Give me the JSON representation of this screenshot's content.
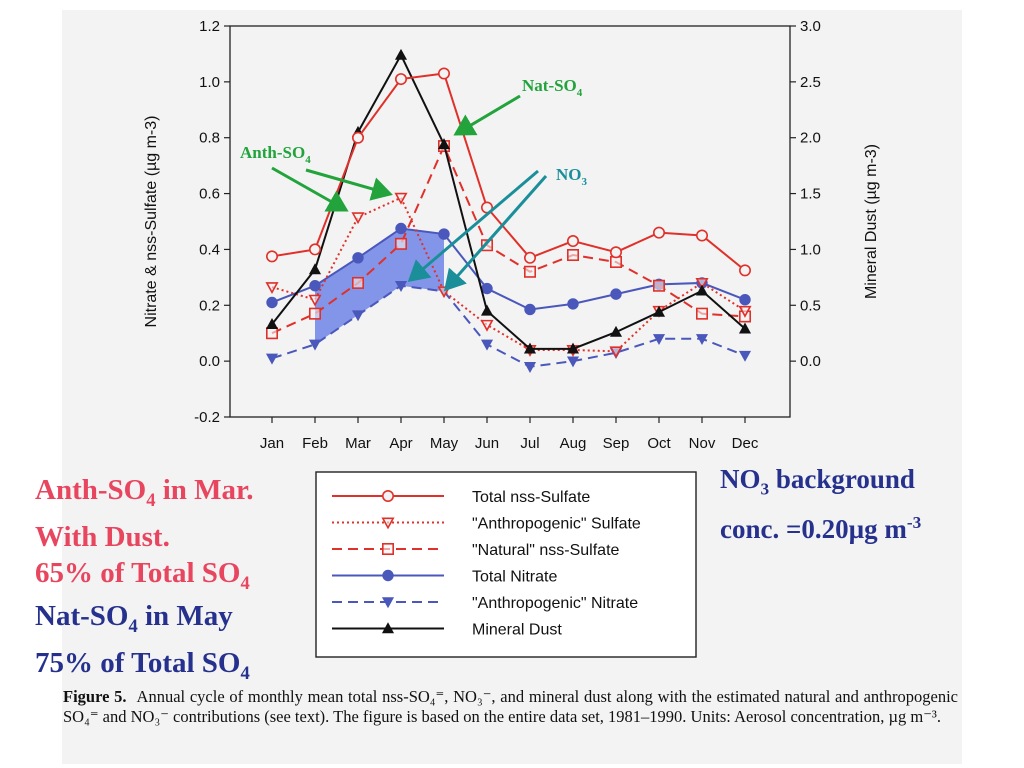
{
  "chart_data": {
    "type": "line",
    "categories": [
      "Jan",
      "Feb",
      "Mar",
      "Apr",
      "May",
      "Jun",
      "Jul",
      "Aug",
      "Sep",
      "Oct",
      "Nov",
      "Dec"
    ],
    "ylabel_left": "Nitrate & nss-Sulfate (µg m-3)",
    "ylabel_right": "Mineral Dust (µg m-3)",
    "ylim_left": [
      -0.2,
      1.2
    ],
    "yticks_left": [
      "-0.2",
      "0.0",
      "0.2",
      "0.4",
      "0.6",
      "0.8",
      "1.0",
      "1.2"
    ],
    "ylim_right": [
      -0.5,
      3.0
    ],
    "yticks_right": [
      "0.0",
      "0.5",
      "1.0",
      "1.5",
      "2.0",
      "2.5",
      "3.0"
    ],
    "series": [
      {
        "name": "Total nss-Sulfate",
        "axis": "left",
        "color": "#e0302a",
        "dash": "solid",
        "marker": "circle-open",
        "values": [
          0.375,
          0.4,
          0.8,
          1.01,
          1.03,
          0.55,
          0.37,
          0.43,
          0.39,
          0.46,
          0.45,
          0.325
        ]
      },
      {
        "name": "\"Anthropogenic\" Sulfate",
        "axis": "left",
        "color": "#e0302a",
        "dash": "dotted",
        "marker": "triangle-down-open",
        "values": [
          0.265,
          0.22,
          0.515,
          0.585,
          0.25,
          0.13,
          0.04,
          0.04,
          0.035,
          0.18,
          0.28,
          0.18
        ]
      },
      {
        "name": "\"Natural\" nss-Sulfate",
        "axis": "left",
        "color": "#e0302a",
        "dash": "dashed",
        "marker": "square-open",
        "values": [
          0.1,
          0.17,
          0.28,
          0.42,
          0.77,
          0.415,
          0.32,
          0.38,
          0.355,
          0.27,
          0.17,
          0.16
        ]
      },
      {
        "name": "Total Nitrate",
        "axis": "left",
        "color": "#4a57bb",
        "dash": "solid",
        "marker": "circle-filled",
        "values": [
          0.21,
          0.27,
          0.37,
          0.475,
          0.455,
          0.26,
          0.185,
          0.205,
          0.24,
          0.275,
          0.28,
          0.22
        ]
      },
      {
        "name": "\"Anthropogenic\" Nitrate",
        "axis": "left",
        "color": "#4a57bb",
        "dash": "dashed",
        "marker": "triangle-down-filled",
        "values": [
          0.01,
          0.06,
          0.165,
          0.27,
          0.25,
          0.06,
          -0.02,
          0.0,
          0.03,
          0.08,
          0.08,
          0.02
        ]
      },
      {
        "name": "Mineral Dust",
        "axis": "right",
        "color": "#111111",
        "dash": "solid",
        "marker": "triangle-up-filled",
        "values": [
          0.33,
          0.82,
          2.05,
          2.74,
          1.94,
          0.45,
          0.11,
          0.11,
          0.26,
          0.44,
          0.63,
          0.29
        ]
      }
    ],
    "legend_position": "bottom"
  },
  "annotations": {
    "nat_so4": "Nat-SO",
    "nat_so4_sub": "4",
    "anth_so4": "Anth-SO",
    "anth_so4_sub": "4",
    "no3": "NO",
    "no3_sub": "3",
    "red_line1_a": "Anth-SO",
    "red_line1_sub": "4",
    "red_line1_b": " in Mar.",
    "red_line2": "With Dust.",
    "red_line3_a": "65% of Total SO",
    "red_line3_sub": "4",
    "blue_line1_a": "Nat-SO",
    "blue_line1_sub": "4",
    "blue_line1_b": " in May",
    "blue_line2_a": "75% of Total SO",
    "blue_line2_sub": "4",
    "no3_bg_a": "NO",
    "no3_bg_sub": "3",
    "no3_bg_b": " background",
    "no3_bg_line2_a": "conc. =0.20µg m",
    "no3_bg_line2_sup": "-3"
  },
  "caption": {
    "label": "Figure 5.",
    "text": "Annual cycle of monthly mean total nss-SO₄⁼, NO₃⁻, and mineral dust along with the estimated natural and anthropogenic SO₄⁼ and NO₃⁻ contributions (see text). The figure is based on the entire data set, 1981–1990. Units: Aerosol concentration, µg m⁻³."
  },
  "colors": {
    "green_arrow": "#22a33b",
    "teal_arrow": "#1a8f9a",
    "shade": "#6f84e6",
    "red_text": "#e8455f",
    "navy_text": "#26318e"
  }
}
